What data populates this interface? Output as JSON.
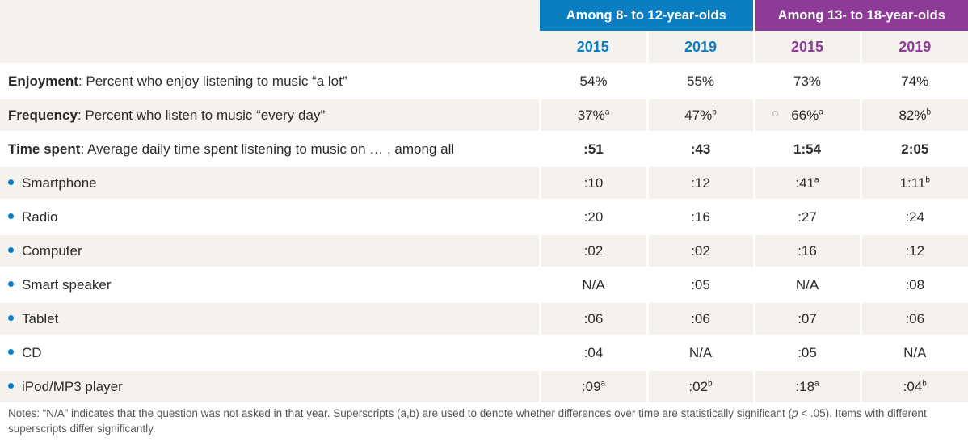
{
  "groups": {
    "young": "Among 8- to 12-year-olds",
    "teen": "Among 13- to 18-year-olds"
  },
  "years": [
    "2015",
    "2019",
    "2015",
    "2019"
  ],
  "rows": [
    {
      "label_bold": "Enjoyment",
      "label_rest": ": Percent who enjoy listening to music “a lot”",
      "values": [
        {
          "v": "54%",
          "s": ""
        },
        {
          "v": "55%",
          "s": ""
        },
        {
          "v": "73%",
          "s": ""
        },
        {
          "v": "74%",
          "s": ""
        }
      ]
    },
    {
      "label_bold": "Frequency",
      "label_rest": ": Percent who listen to music “every day”",
      "values": [
        {
          "v": "37%",
          "s": "a"
        },
        {
          "v": "47%",
          "s": "b"
        },
        {
          "v": "66%",
          "s": "a"
        },
        {
          "v": "82%",
          "s": "b"
        }
      ]
    },
    {
      "label_bold": "Time spent",
      "label_rest": ": Average daily time spent listening to music on … , among all",
      "values": [
        {
          "v": ":51",
          "s": ""
        },
        {
          "v": ":43",
          "s": ""
        },
        {
          "v": "1:54",
          "s": ""
        },
        {
          "v": "2:05",
          "s": ""
        }
      ]
    }
  ],
  "subrows": [
    {
      "label": "Smartphone",
      "values": [
        {
          "v": ":10",
          "s": ""
        },
        {
          "v": ":12",
          "s": ""
        },
        {
          "v": ":41",
          "s": "a"
        },
        {
          "v": "1:11",
          "s": "b"
        }
      ]
    },
    {
      "label": "Radio",
      "values": [
        {
          "v": ":20",
          "s": ""
        },
        {
          "v": ":16",
          "s": ""
        },
        {
          "v": ":27",
          "s": ""
        },
        {
          "v": ":24",
          "s": ""
        }
      ]
    },
    {
      "label": "Computer",
      "values": [
        {
          "v": ":02",
          "s": ""
        },
        {
          "v": ":02",
          "s": ""
        },
        {
          "v": ":16",
          "s": ""
        },
        {
          "v": ":12",
          "s": ""
        }
      ]
    },
    {
      "label": "Smart speaker",
      "values": [
        {
          "v": "N/A",
          "s": ""
        },
        {
          "v": ":05",
          "s": ""
        },
        {
          "v": "N/A",
          "s": ""
        },
        {
          "v": ":08",
          "s": ""
        }
      ]
    },
    {
      "label": "Tablet",
      "values": [
        {
          "v": ":06",
          "s": ""
        },
        {
          "v": ":06",
          "s": ""
        },
        {
          "v": ":07",
          "s": ""
        },
        {
          "v": ":06",
          "s": ""
        }
      ]
    },
    {
      "label": "CD",
      "values": [
        {
          "v": ":04",
          "s": ""
        },
        {
          "v": "N/A",
          "s": ""
        },
        {
          "v": ":05",
          "s": ""
        },
        {
          "v": "N/A",
          "s": ""
        }
      ]
    },
    {
      "label": "iPod/MP3 player",
      "values": [
        {
          "v": ":09",
          "s": "a"
        },
        {
          "v": ":02",
          "s": "b"
        },
        {
          "v": ":18",
          "s": "a"
        },
        {
          "v": ":04",
          "s": "b"
        }
      ]
    }
  ],
  "notes": {
    "part1": "Notes: “N/A” indicates that the question was not asked in that year. Superscripts (a,b) are used to denote whether differences over time are statistically significant (",
    "p": "p",
    "part2": " < .05). Items with different superscripts differ significantly."
  },
  "colors": {
    "young": "#0b7ec2",
    "teen": "#8e3b97",
    "shade": "#f5f1ed"
  }
}
